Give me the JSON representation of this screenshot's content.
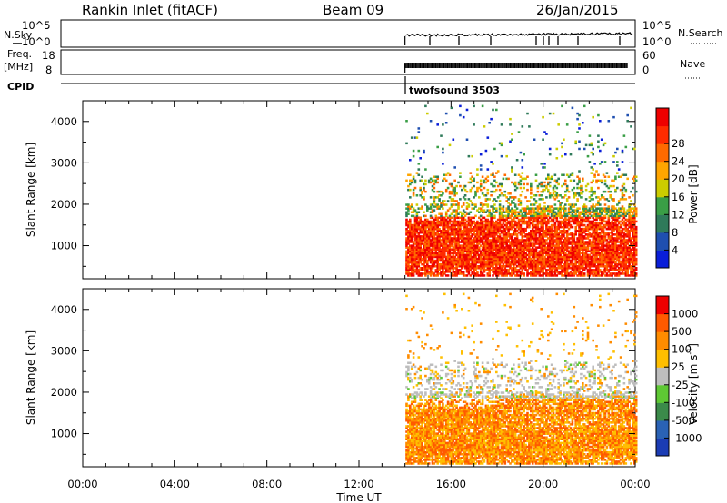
{
  "header": {
    "station": "Rankin Inlet (fitACF)",
    "beam": "Beam 09",
    "date": "26/Jan/2015"
  },
  "nsky": {
    "label": "N.Sky",
    "top": "10^5",
    "bottom": "10^0"
  },
  "nsearch": {
    "label": "N.Search",
    "top": "10^5",
    "bottom": "10^0"
  },
  "freq": {
    "label_1": "Freq.",
    "label_2": "[MHz]",
    "top": "18",
    "bottom": "8"
  },
  "nave": {
    "label": "Nave",
    "top": "60",
    "bottom": "0"
  },
  "cpid": {
    "label": "CPID",
    "mode": "twofsound 3503"
  },
  "colors": {
    "power": [
      "#0a1ed8",
      "#1f4fb0",
      "#2f7a5a",
      "#3a9e46",
      "#cccc00",
      "#ffa500",
      "#ff6a00",
      "#ff2b00",
      "#ee0000"
    ],
    "velocity": [
      "#1b3cb4",
      "#2a62b5",
      "#3b8a4a",
      "#5ec834",
      "#bdbdbd",
      "#ffbf00",
      "#ff8c00",
      "#ff5a00",
      "#ee0000"
    ]
  },
  "chart_data": [
    {
      "type": "heatmap",
      "name": "power",
      "title": "",
      "xlabel": "Time UT",
      "ylabel": "Slant Range [km]",
      "xlim": [
        0,
        24
      ],
      "ylim": [
        200,
        4500
      ],
      "x_ticks": [
        "00:00",
        "04:00",
        "08:00",
        "12:00",
        "16:00",
        "20:00",
        "00:00"
      ],
      "y_ticks": [
        1000,
        2000,
        3000,
        4000
      ],
      "colorbar": {
        "label": "Power [dB]",
        "ticks": [
          4,
          8,
          12,
          16,
          20,
          24,
          28
        ],
        "range": [
          0,
          32
        ]
      },
      "data_start_hour": 14.0
    },
    {
      "type": "heatmap",
      "name": "velocity",
      "title": "",
      "xlabel": "Time UT",
      "ylabel": "Slant Range [km]",
      "xlim": [
        0,
        24
      ],
      "ylim": [
        200,
        4500
      ],
      "x_ticks": [
        "00:00",
        "04:00",
        "08:00",
        "12:00",
        "16:00",
        "20:00",
        "00:00"
      ],
      "y_ticks": [
        1000,
        2000,
        3000,
        4000
      ],
      "colorbar": {
        "label": "Velocity [m s",
        "label_sup": "-1",
        "label_end": "]",
        "ticks": [
          "1000",
          "500",
          "100",
          "25",
          "-25",
          "-100",
          "-500",
          "-1000"
        ]
      },
      "data_start_hour": 14.0
    }
  ]
}
